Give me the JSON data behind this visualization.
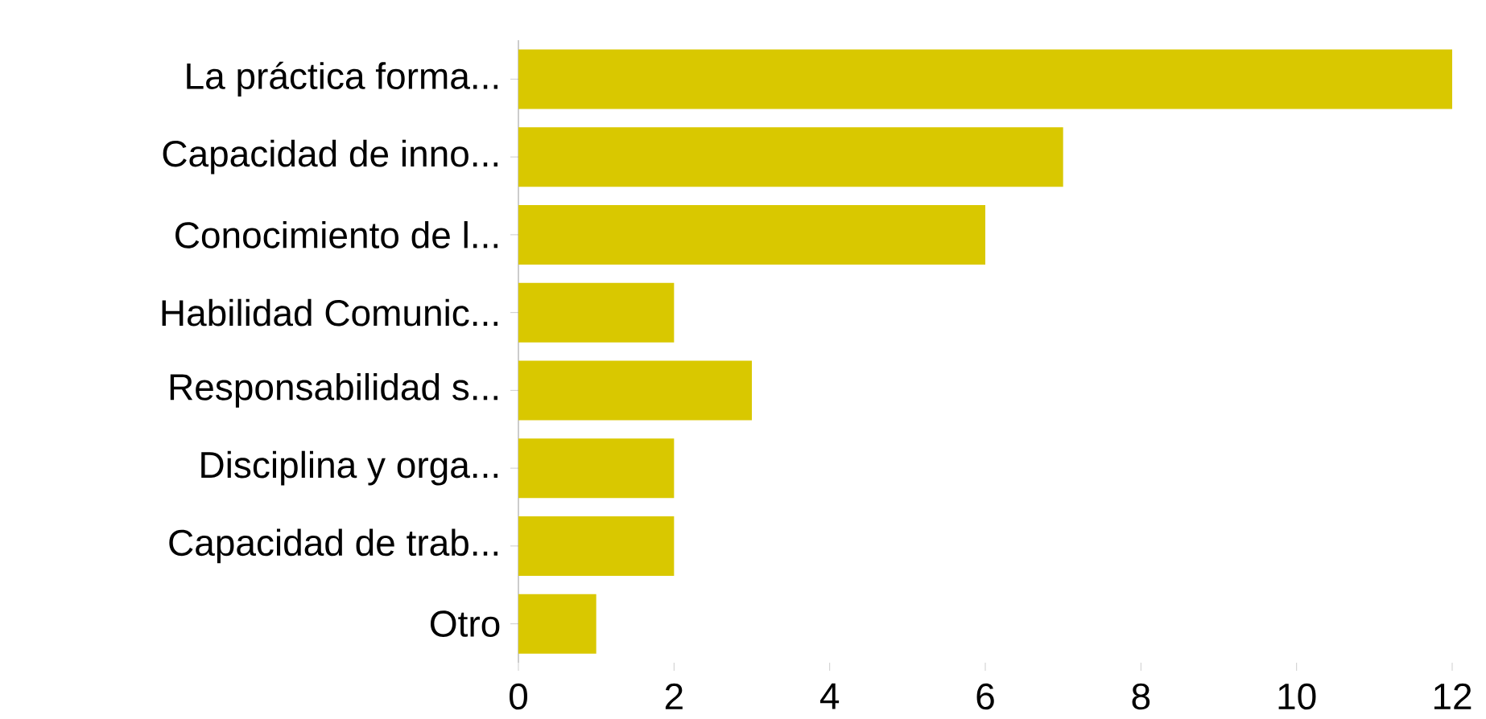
{
  "chart_data": {
    "type": "bar",
    "orientation": "horizontal",
    "categories": [
      "La práctica forma...",
      "Capacidad de inno...",
      "Conocimiento de l...",
      "Habilidad Comunic...",
      "Responsabilidad s...",
      "Disciplina y orga...",
      "Capacidad de trab...",
      "Otro"
    ],
    "values": [
      12,
      7,
      6,
      2,
      3,
      2,
      2,
      1
    ],
    "color": "#d9c800",
    "xlim": [
      0,
      12
    ],
    "xticks": [
      0,
      2,
      4,
      6,
      8,
      10,
      12
    ],
    "grid": false
  }
}
